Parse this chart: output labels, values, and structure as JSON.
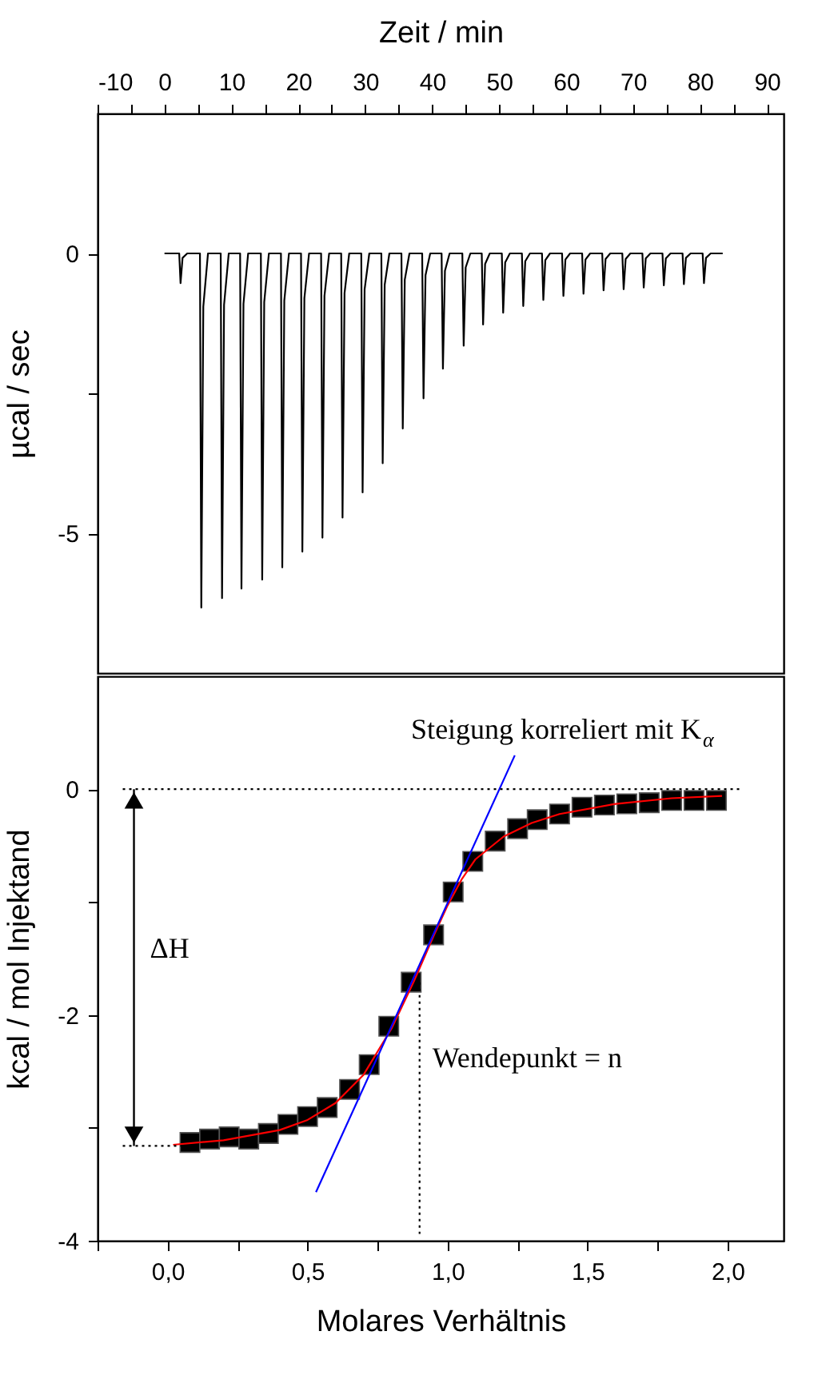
{
  "chart_data": [
    {
      "type": "line",
      "xlabel": "Zeit / min",
      "ylabel": "µcal / sec",
      "color": "#000000",
      "x": [
        0,
        2.2,
        2.4,
        2.7,
        3.4,
        5.3,
        5.5,
        5.8,
        6.5,
        8.4,
        8.6,
        8.9,
        9.6,
        11.3,
        11.5,
        11.8,
        12.5,
        14.4,
        14.6,
        14.9,
        15.6,
        17.4,
        17.6,
        17.9,
        18.6,
        20.4,
        20.6,
        20.9,
        21.6,
        23.4,
        23.6,
        23.9,
        24.6,
        26.4,
        26.6,
        26.9,
        27.6,
        29.4,
        29.6,
        29.9,
        30.6,
        32.4,
        32.6,
        32.9,
        33.6,
        35.4,
        35.6,
        35.9,
        36.6,
        38.5,
        38.7,
        39,
        39.7,
        41.4,
        41.6,
        41.9,
        42.6,
        44.5,
        44.7,
        45,
        45.7,
        47.4,
        47.6,
        47.9,
        48.6,
        50.4,
        50.6,
        50.9,
        51.6,
        53.4,
        53.6,
        53.9,
        54.6,
        56.4,
        56.6,
        56.9,
        57.6,
        59.4,
        59.6,
        59.9,
        60.6,
        62.4,
        62.6,
        62.9,
        63.6,
        65.4,
        65.6,
        65.9,
        66.6,
        68.4,
        68.6,
        68.9,
        69.6,
        71.4,
        71.6,
        71.9,
        72.6,
        74.4,
        74.6,
        74.9,
        75.6,
        77.4,
        77.6,
        77.9,
        78.6,
        80.4,
        80.6,
        80.9,
        81.6,
        83.4
      ],
      "values": [
        0,
        0,
        -0.53,
        -0.08,
        0,
        0,
        -6.33,
        -0.95,
        0,
        0,
        -6.16,
        -0.92,
        0,
        0,
        -5.99,
        -0.9,
        0,
        0,
        -5.83,
        -0.87,
        0,
        0,
        -5.61,
        -0.84,
        0,
        0,
        -5.33,
        -0.8,
        0,
        0,
        -5.08,
        -0.76,
        0,
        0,
        -4.72,
        -0.71,
        0,
        0,
        -4.27,
        -0.64,
        0,
        0,
        -3.75,
        -0.56,
        0,
        0,
        -3.13,
        -0.47,
        0,
        0,
        -2.59,
        -0.39,
        0,
        0,
        -2.06,
        -0.31,
        0,
        0,
        -1.65,
        -0.25,
        0,
        0,
        -1.27,
        -0.19,
        0,
        0,
        -1.06,
        -0.16,
        0,
        0,
        -0.94,
        -0.14,
        0,
        0,
        -0.83,
        -0.12,
        0,
        0,
        -0.76,
        -0.11,
        0,
        0,
        -0.72,
        -0.11,
        0,
        0,
        -0.66,
        -0.1,
        0,
        0,
        -0.64,
        -0.1,
        0,
        0,
        -0.61,
        -0.09,
        0,
        0,
        -0.57,
        -0.09,
        0,
        0,
        -0.55,
        -0.08,
        0,
        0,
        -0.53,
        -0.08,
        0,
        0
      ],
      "xlim": [
        -10,
        92.5
      ],
      "xticks": [
        -10,
        {
          "value": -5,
          "label": null
        },
        0,
        {
          "value": 5,
          "label": null
        },
        10,
        {
          "value": 15,
          "label": null
        },
        20,
        {
          "value": 25,
          "label": null
        },
        30,
        {
          "value": 35,
          "label": null
        },
        40,
        {
          "value": 45,
          "label": null
        },
        50,
        {
          "value": 55,
          "label": null
        },
        60,
        {
          "value": 65,
          "label": null
        },
        70,
        {
          "value": 75,
          "label": null
        },
        80,
        {
          "value": 85,
          "label": null
        },
        90
      ],
      "ylim": [
        -7.5,
        2.5
      ],
      "yticks": [
        -5,
        {
          "value": -2.5,
          "label": null
        },
        0
      ]
    },
    {
      "type": "line",
      "xlabel": "Molares Verhältnis",
      "ylabel": "kcal / mol Injektand",
      "series": [
        {
          "type": "scatter",
          "marker": "square",
          "color": "#000000",
          "x": [
            0.08,
            0.15,
            0.22,
            0.29,
            0.36,
            0.43,
            0.5,
            0.57,
            0.65,
            0.72,
            0.79,
            0.87,
            0.95,
            1.02,
            1.09,
            1.17,
            1.25,
            1.32,
            1.4,
            1.48,
            1.56,
            1.64,
            1.72,
            1.8,
            1.88,
            1.96
          ],
          "values": [
            -3.13,
            -3.1,
            -3.08,
            -3.1,
            -3.05,
            -2.97,
            -2.9,
            -2.82,
            -2.66,
            -2.44,
            -2.1,
            -1.71,
            -1.29,
            -0.91,
            -0.64,
            -0.46,
            -0.35,
            -0.27,
            -0.22,
            -0.16,
            -0.14,
            -0.13,
            -0.12,
            -0.1,
            -0.1,
            -0.1
          ]
        },
        {
          "color": "#ff0000",
          "x": [
            0.02,
            0.2,
            0.4,
            0.5,
            0.6,
            0.7,
            0.8,
            0.88,
            0.95,
            1.0,
            1.05,
            1.1,
            1.2,
            1.3,
            1.4,
            1.6,
            1.8,
            1.98
          ],
          "values": [
            -3.15,
            -3.11,
            -3.02,
            -2.93,
            -2.78,
            -2.53,
            -2.12,
            -1.7,
            -1.3,
            -1.03,
            -0.8,
            -0.62,
            -0.42,
            -0.3,
            -0.22,
            -0.13,
            -0.08,
            -0.06
          ]
        },
        {
          "color": "#0000ff",
          "x": [
            0.53,
            1.24
          ],
          "values": [
            -3.57,
            0.3
          ]
        },
        {
          "color": "#000000",
          "line_style": "dotted",
          "x": [
            -0.16,
            2.05
          ],
          "values": [
            0,
            0
          ]
        },
        {
          "color": "#000000",
          "line_style": "dotted",
          "x": [
            -0.16,
            0.05
          ],
          "values": [
            -3.16,
            -3.16
          ]
        },
        {
          "color": "#000000",
          "line_style": "dotted",
          "x": [
            0.9,
            0.9
          ],
          "values": [
            -1.71,
            -3.94
          ]
        }
      ],
      "annotations": [
        "ΔH",
        {
          "text": "Wendepunkt = n",
          "x": 0.9,
          "y": -2.39
        },
        "Steigung korreliert mit K$_{α}$"
      ],
      "xlim": [
        -0.25,
        2.2
      ],
      "xticks": [
        {
          "value": -0.25,
          "label": null
        },
        {
          "value": 0,
          "label": "0,0"
        },
        {
          "value": 0.25,
          "label": null
        },
        {
          "value": 0.5,
          "label": "0,5"
        },
        {
          "value": 0.75,
          "label": null
        },
        {
          "value": 1,
          "label": "1,0"
        },
        {
          "value": 1.25,
          "label": null
        },
        {
          "value": 1.5,
          "label": "1,5"
        },
        {
          "value": 1.75,
          "label": null
        },
        {
          "value": 2,
          "label": "2,0"
        }
      ],
      "ylim": [
        -4,
        1
      ],
      "yticks": [
        -4,
        {
          "value": -3,
          "label": null
        },
        -2,
        {
          "value": -1,
          "label": null
        },
        0
      ]
    }
  ]
}
